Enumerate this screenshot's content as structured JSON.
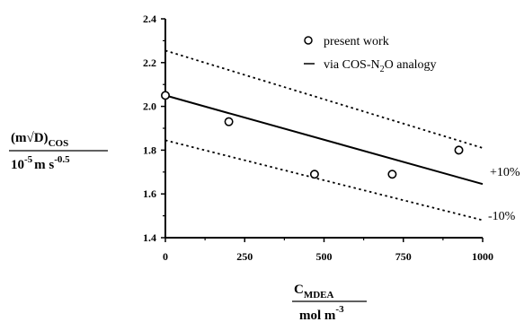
{
  "chart_data": {
    "type": "scatter",
    "x_ticks": [
      "0",
      "250",
      "500",
      "750",
      "1000"
    ],
    "y_ticks": [
      "1.4",
      "1.6",
      "1.8",
      "2.0",
      "2.2",
      "2.4"
    ],
    "xlim": [
      0,
      1000
    ],
    "ylim": [
      1.4,
      2.4
    ],
    "grid": false,
    "legend_position": "top-right",
    "xlabel": {
      "main": "C",
      "sub": "MDEA",
      "den_main": "mol m",
      "den_sup": "-3"
    },
    "ylabel": {
      "main": "(m√D)",
      "sub": "COS",
      "den_a": "10",
      "den_a_sup": "-5",
      "den_b": "m s",
      "den_b_sup": "-0.5"
    },
    "series": [
      {
        "name": "present work",
        "kind": "markers",
        "x": [
          0,
          200,
          470,
          715,
          925
        ],
        "y": [
          2.05,
          1.93,
          1.69,
          1.69,
          1.8
        ]
      },
      {
        "name_parts": [
          "via COS-N",
          "2",
          "O analogy"
        ],
        "kind": "line",
        "x": [
          0,
          1000
        ],
        "y": [
          2.05,
          1.645
        ]
      },
      {
        "kind": "dotted",
        "label": "+10%",
        "x": [
          0,
          1000
        ],
        "y": [
          2.255,
          1.81
        ]
      },
      {
        "kind": "dotted",
        "label": "-10%",
        "x": [
          0,
          1000
        ],
        "y": [
          1.845,
          1.48
        ]
      }
    ]
  }
}
